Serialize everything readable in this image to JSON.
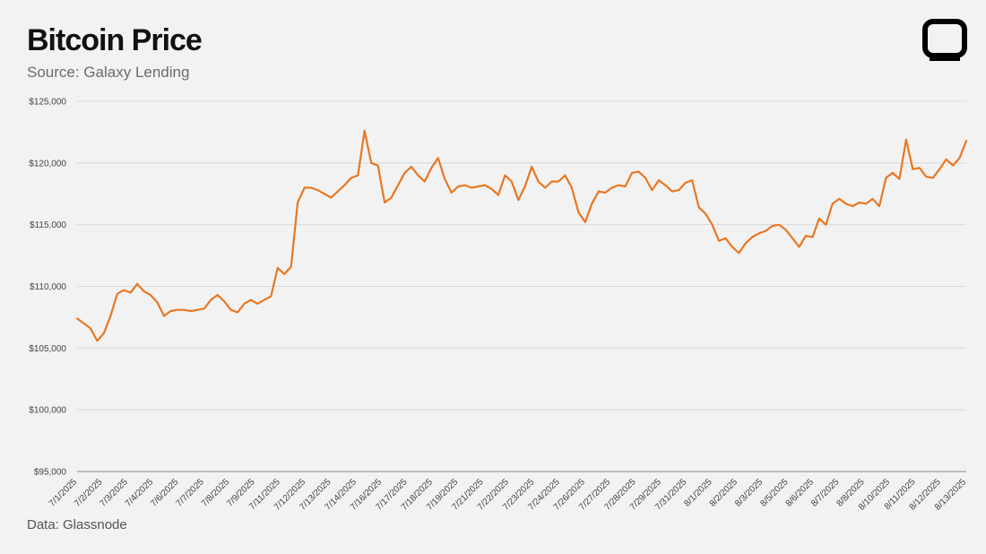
{
  "header": {
    "title": "Bitcoin Price",
    "subtitle": "Source: Galaxy Lending"
  },
  "footer": {
    "note": "Data: Glassnode"
  },
  "logo": {
    "icon": "square-frame-logo-icon"
  },
  "colors": {
    "line": "#e87722",
    "grid": "#d9d9d9",
    "background": "#f2f2f2"
  },
  "chart_data": {
    "type": "line",
    "title": "Bitcoin Price",
    "xlabel": "",
    "ylabel": "",
    "ylim": [
      95000,
      125000
    ],
    "yticks": [
      "$95,000",
      "$100,000",
      "$105,000",
      "$110,000",
      "$115,000",
      "$120,000",
      "$125,000"
    ],
    "ytick_values": [
      95000,
      100000,
      105000,
      110000,
      115000,
      120000,
      125000
    ],
    "xticks": [
      "7/1/2025",
      "7/2/2025",
      "7/3/2025",
      "7/4/2025",
      "7/6/2025",
      "7/7/2025",
      "7/8/2025",
      "7/9/2025",
      "7/11/2025",
      "7/12/2025",
      "7/13/2025",
      "7/14/2025",
      "7/16/2025",
      "7/17/2025",
      "7/18/2025",
      "7/19/2025",
      "7/21/2025",
      "7/22/2025",
      "7/23/2025",
      "7/24/2025",
      "7/26/2025",
      "7/27/2025",
      "7/28/2025",
      "7/29/2025",
      "7/31/2025",
      "8/1/2025",
      "8/2/2025",
      "8/3/2025",
      "8/5/2025",
      "8/6/2025",
      "8/7/2025",
      "8/8/2025",
      "8/10/2025",
      "8/11/2025",
      "8/12/2025",
      "8/13/2025"
    ],
    "grid": true,
    "legend": "none",
    "series": [
      {
        "values": [
          107400,
          107000,
          106600,
          105600,
          106200,
          107600,
          109400,
          109700,
          109500,
          110200,
          109600,
          109300,
          108700,
          107600,
          108000,
          108100,
          108100,
          108000,
          108100,
          108200,
          108900,
          109300,
          108800,
          108100,
          107900,
          108600,
          108900,
          108600,
          108900,
          109200,
          111500,
          111000,
          111600,
          116800,
          118000,
          118000,
          117800,
          117500,
          117200,
          117700,
          118200,
          118800,
          119000,
          122600,
          120000,
          119800,
          116800,
          117200,
          118200,
          119200,
          119700,
          119000,
          118500,
          119600,
          120400,
          118700,
          117600,
          118100,
          118200,
          118000,
          118100,
          118200,
          117900,
          117400,
          119000,
          118500,
          117000,
          118100,
          119700,
          118500,
          118000,
          118500,
          118500,
          119000,
          118000,
          116000,
          115200,
          116700,
          117700,
          117600,
          118000,
          118200,
          118100,
          119200,
          119300,
          118800,
          117800,
          118600,
          118200,
          117700,
          117800,
          118400,
          118600,
          116400,
          115900,
          115000,
          113700,
          113900,
          113200,
          112700,
          113500,
          114000,
          114300,
          114500,
          114900,
          115000,
          114600,
          113900,
          113200,
          114100,
          114000,
          115500,
          115000,
          116700,
          117100,
          116700,
          116500,
          116800,
          116700,
          117100,
          116500,
          118800,
          119200,
          118700,
          121900,
          119500,
          119600,
          118900,
          118800,
          119500,
          120300,
          119800,
          120400,
          121800
        ]
      }
    ]
  }
}
